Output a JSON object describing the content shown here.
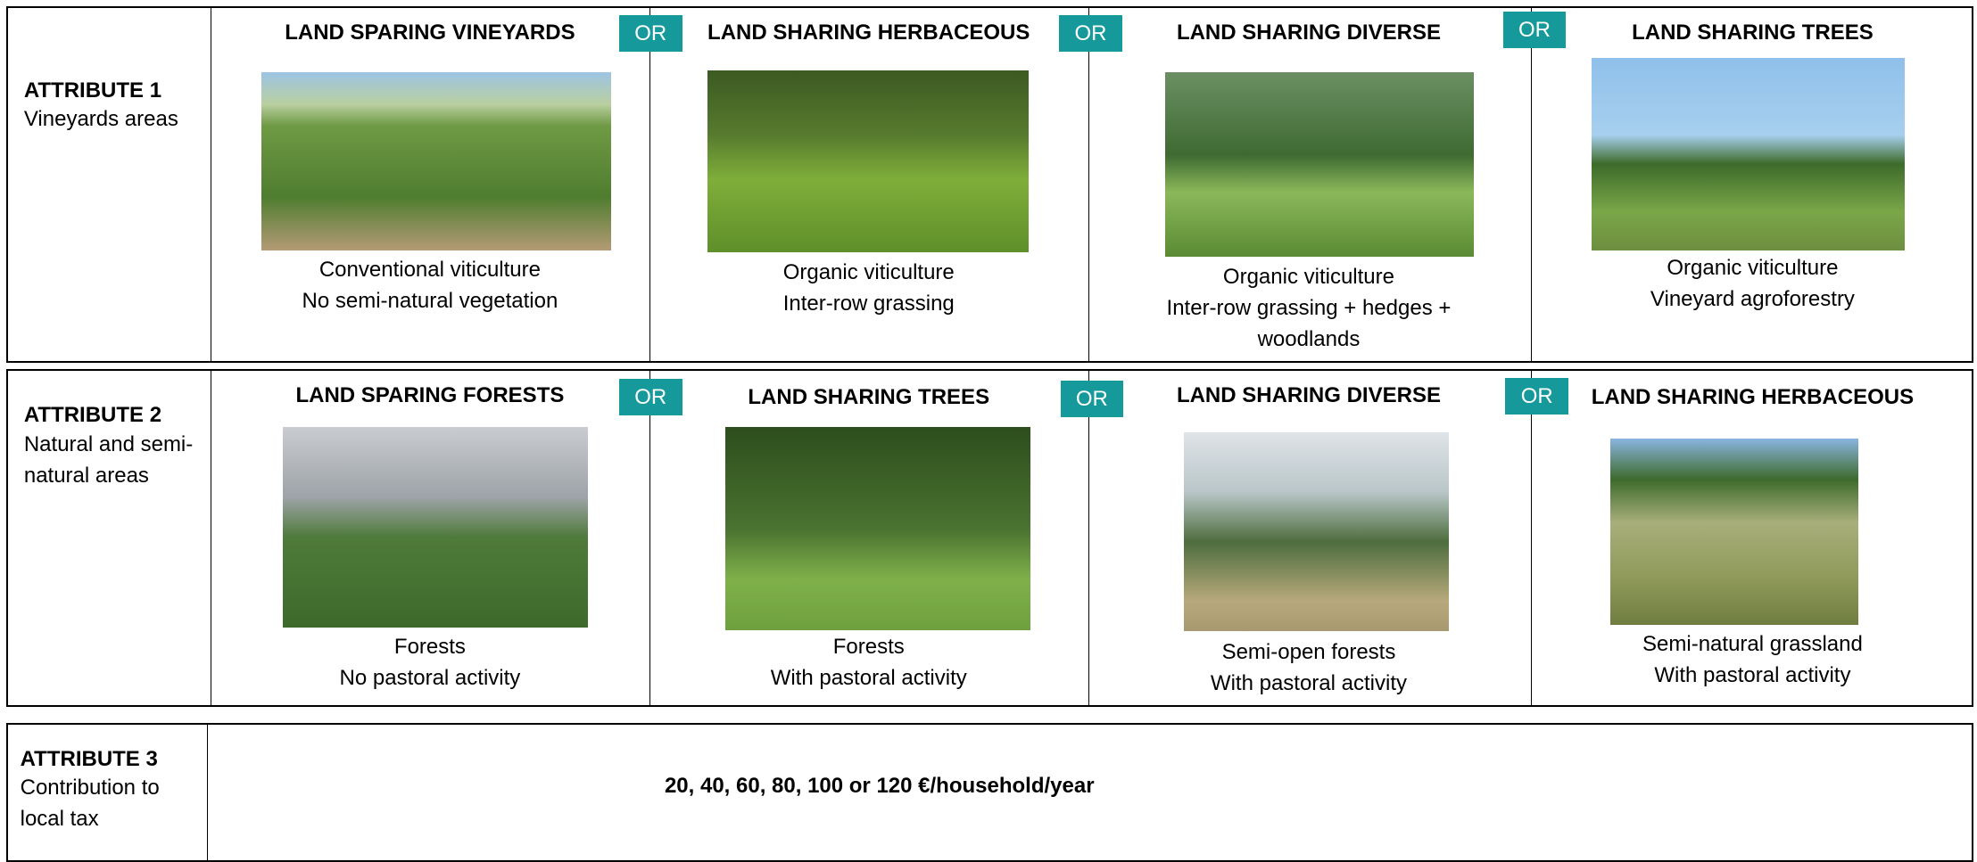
{
  "attributes": [
    {
      "title": "ATTRIBUTE 1",
      "description": "Vineyards areas",
      "options": [
        {
          "heading": "LAND SPARING VINEYARDS",
          "caption": [
            "Conventional viticulture",
            "No semi-natural vegetation"
          ]
        },
        {
          "heading": "LAND SHARING HERBACEOUS",
          "caption": [
            "Organic viticulture",
            "Inter-row grassing"
          ]
        },
        {
          "heading": "LAND SHARING DIVERSE",
          "caption": [
            "Organic viticulture",
            "Inter-row grassing + hedges + woodlands"
          ]
        },
        {
          "heading": "LAND SHARING TREES",
          "caption": [
            "Organic viticulture",
            "Vineyard agroforestry"
          ]
        }
      ]
    },
    {
      "title": "ATTRIBUTE 2",
      "description": "Natural and semi-natural areas",
      "options": [
        {
          "heading": "LAND SPARING FORESTS",
          "caption": [
            "Forests",
            "No pastoral activity"
          ]
        },
        {
          "heading": "LAND SHARING TREES",
          "caption": [
            "Forests",
            "With pastoral activity"
          ]
        },
        {
          "heading": "LAND SHARING DIVERSE",
          "caption": [
            "Semi-open forests",
            "With pastoral activity"
          ]
        },
        {
          "heading": "LAND SHARING HERBACEOUS",
          "caption": [
            "Semi-natural grassland",
            "With pastoral activity"
          ]
        }
      ]
    },
    {
      "title": "ATTRIBUTE 3",
      "description": "Contribution to local tax",
      "value": "20, 40, 60, 80, 100 or 120 €/household/year"
    }
  ],
  "separator": "OR"
}
